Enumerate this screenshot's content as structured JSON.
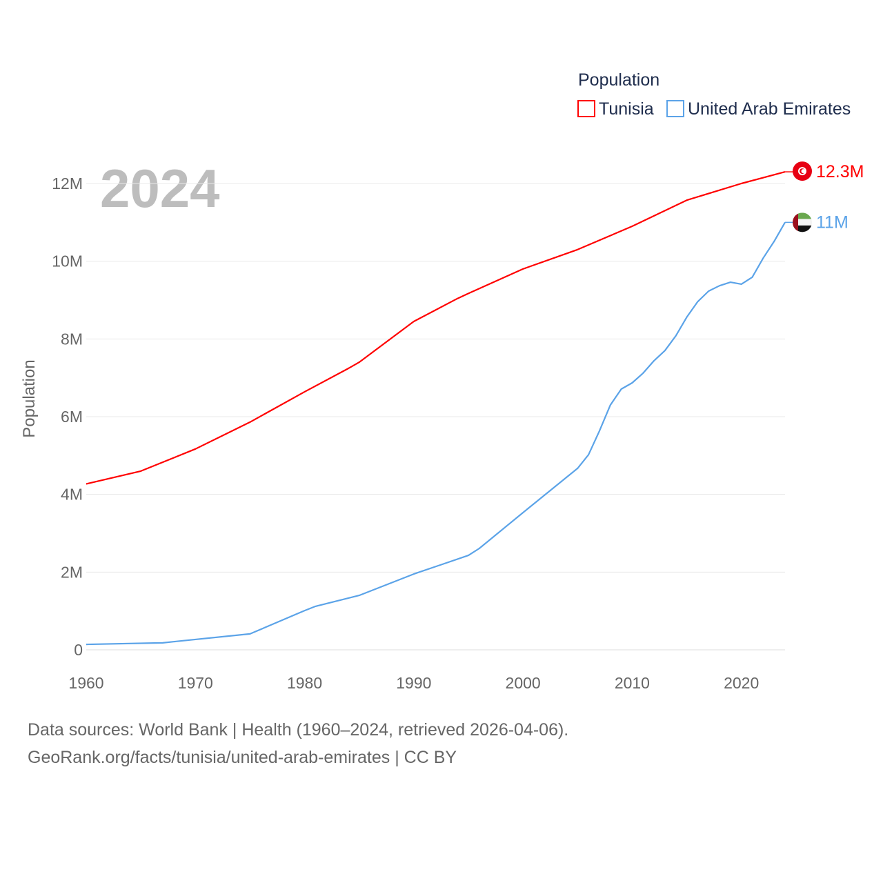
{
  "chart_data": {
    "type": "line",
    "title": "",
    "year_label": "2024",
    "ylabel": "Population",
    "xlabel": "",
    "xlim": [
      1960,
      2024
    ],
    "ylim": [
      0,
      12000000
    ],
    "x_ticks": [
      1960,
      1970,
      1980,
      1990,
      2000,
      2010,
      2020
    ],
    "x_tick_labels": [
      "1960",
      "1970",
      "1980",
      "1990",
      "2000",
      "2010",
      "2020"
    ],
    "y_ticks": [
      0,
      2000000,
      4000000,
      6000000,
      8000000,
      10000000,
      12000000
    ],
    "y_tick_labels": [
      "0",
      "2M",
      "4M",
      "6M",
      "8M",
      "10M",
      "12M"
    ],
    "grid": true,
    "legend": {
      "title": "Population",
      "placement": "top-right"
    },
    "series": [
      {
        "name": "Tunisia",
        "color": "#ff0000",
        "end_label": "12.3M",
        "flag": "tunisia-flag",
        "x": [
          1960,
          1965,
          1970,
          1975,
          1980,
          1984,
          1985,
          1990,
          1994,
          1995,
          2000,
          2005,
          2010,
          2015,
          2020,
          2024
        ],
        "y": [
          4.27,
          4.6,
          5.17,
          5.86,
          6.64,
          7.24,
          7.4,
          8.45,
          9.04,
          9.17,
          9.8,
          10.3,
          10.9,
          11.57,
          12.0,
          12.3
        ]
      },
      {
        "name": "United Arab Emirates",
        "color": "#5ba3e8",
        "end_label": "11M",
        "flag": "uae-flag",
        "x": [
          1960,
          1967,
          1968,
          1975,
          1980,
          1981,
          1985,
          1990,
          1995,
          1996,
          2000,
          2005,
          2006,
          2007,
          2008,
          2009,
          2010,
          2011,
          2012,
          2013,
          2014,
          2015,
          2016,
          2017,
          2018,
          2019,
          2020,
          2021,
          2022,
          2023,
          2024
        ],
        "y": [
          0.14,
          0.18,
          0.21,
          0.41,
          1.01,
          1.12,
          1.4,
          1.95,
          2.43,
          2.61,
          3.53,
          4.67,
          5.02,
          5.63,
          6.3,
          6.71,
          6.87,
          7.12,
          7.44,
          7.7,
          8.08,
          8.56,
          8.96,
          9.23,
          9.37,
          9.46,
          9.41,
          9.59,
          10.08,
          10.51,
          11.0
        ]
      }
    ],
    "y_unit_multiplier": 1000000
  },
  "footer": {
    "line1": "Data sources: World Bank | Health (1960–2024, retrieved 2026-04-06).",
    "line2": "GeoRank.org/facts/tunisia/united-arab-emirates | CC BY"
  }
}
